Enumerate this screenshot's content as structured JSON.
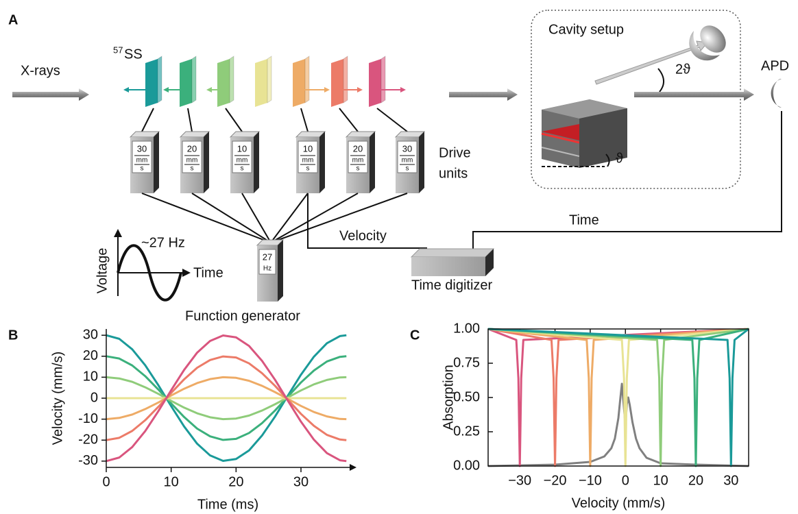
{
  "diagram": {
    "panel": "A",
    "source_label": "X-rays",
    "sample_sup": "57",
    "sample": "SS",
    "cavity_title": "Cavity setup",
    "angle_2": "2ϑ",
    "angle": "ϑ",
    "detector": "APD",
    "drive_units_label": [
      "Drive",
      "units"
    ],
    "drive_units": [
      {
        "speed": "30",
        "unit_top": "mm",
        "unit_bottom": "s"
      },
      {
        "speed": "20",
        "unit_top": "mm",
        "unit_bottom": "s"
      },
      {
        "speed": "10",
        "unit_top": "mm",
        "unit_bottom": "s"
      },
      {
        "speed": "10",
        "unit_top": "mm",
        "unit_bottom": "s"
      },
      {
        "speed": "20",
        "unit_top": "mm",
        "unit_bottom": "s"
      },
      {
        "speed": "30",
        "unit_top": "mm",
        "unit_bottom": "s"
      }
    ],
    "generator": {
      "value": "27",
      "unit": "Hz",
      "label": "Function generator"
    },
    "signal": {
      "frequency": "~27 Hz",
      "y_label": "Voltage",
      "x_label": "Time"
    },
    "velocity_wire": "Velocity",
    "time_wire": "Time",
    "digitizer": "Time digitizer"
  },
  "chart_data": [
    {
      "type": "line",
      "panel": "B",
      "x_label": "Time (ms)",
      "y_label": "Velocity (mm/s)",
      "x": [
        0,
        2,
        4,
        6,
        8,
        10,
        12,
        14,
        16,
        18,
        20,
        22,
        24,
        26,
        28,
        30,
        32,
        34,
        36,
        37
      ],
      "xlim": [
        0,
        37.5
      ],
      "xticks": [
        0,
        10,
        20,
        30
      ],
      "ylim": [
        -33,
        33
      ],
      "yticks": [
        -30,
        -20,
        -10,
        0,
        10,
        20,
        30
      ],
      "series": [
        {
          "color": "#1a9a99",
          "values": [
            30,
            28.3,
            23.3,
            15.7,
            6.3,
            -3.8,
            -13.5,
            -21.7,
            -27.3,
            -29.9,
            -29.0,
            -24.9,
            -17.8,
            -8.8,
            1.3,
            11.2,
            19.8,
            26.2,
            29.6,
            30
          ]
        },
        {
          "color": "#3bb07c",
          "values": [
            20,
            18.9,
            15.6,
            10.5,
            4.2,
            -2.5,
            -9.0,
            -14.5,
            -18.2,
            -19.9,
            -19.4,
            -16.6,
            -11.9,
            -5.9,
            0.8,
            7.5,
            13.2,
            17.5,
            19.7,
            20
          ]
        },
        {
          "color": "#8fcc7a",
          "values": [
            10,
            9.4,
            7.8,
            5.2,
            2.1,
            -1.3,
            -4.5,
            -7.2,
            -9.1,
            -10.0,
            -9.7,
            -8.3,
            -5.9,
            -2.9,
            0.4,
            3.7,
            6.6,
            8.7,
            9.9,
            10
          ]
        },
        {
          "color": "#e8e394",
          "values": [
            0,
            0,
            0,
            0,
            0,
            0,
            0,
            0,
            0,
            0,
            0,
            0,
            0,
            0,
            0,
            0,
            0,
            0,
            0,
            0
          ]
        },
        {
          "color": "#eeab66",
          "values": [
            -10,
            -9.4,
            -7.8,
            -5.2,
            -2.1,
            1.3,
            4.5,
            7.2,
            9.1,
            10.0,
            9.7,
            8.3,
            5.9,
            2.9,
            -0.4,
            -3.7,
            -6.6,
            -8.7,
            -9.9,
            -10
          ]
        },
        {
          "color": "#ec7b68",
          "values": [
            -20,
            -18.9,
            -15.6,
            -10.5,
            -4.2,
            2.5,
            9.0,
            14.5,
            18.2,
            19.9,
            19.4,
            16.6,
            11.9,
            5.9,
            -0.8,
            -7.5,
            -13.2,
            -17.5,
            -19.7,
            -20
          ]
        },
        {
          "color": "#d9557e",
          "values": [
            -30,
            -28.3,
            -23.3,
            -15.7,
            -6.3,
            3.8,
            13.5,
            21.7,
            27.3,
            29.9,
            29.0,
            24.9,
            17.8,
            8.8,
            -1.3,
            -11.2,
            -19.8,
            -26.2,
            -29.6,
            -30
          ]
        }
      ]
    },
    {
      "type": "line",
      "panel": "C",
      "x_label": "Velocity (mm/s)",
      "y_label": "Absorption",
      "xlim": [
        -39,
        35
      ],
      "xticks": [
        {
          "value": -30,
          "label": "−30"
        },
        {
          "value": -20,
          "label": "−20"
        },
        {
          "value": -10,
          "label": "−10"
        },
        0,
        10,
        20,
        30
      ],
      "ylim": [
        0,
        1
      ],
      "yticks": [
        {
          "value": 0,
          "label": "0.00"
        },
        {
          "value": 0.25,
          "label": "0.25"
        },
        {
          "value": 0.5,
          "label": "0.50"
        },
        {
          "value": 0.75,
          "label": "0.75"
        },
        {
          "value": 1,
          "label": "1.00"
        }
      ],
      "series": [
        {
          "color": "#808080",
          "x": [
            -39,
            -20,
            -10,
            -6,
            -4,
            -3,
            -2,
            -1.5,
            -1,
            -0.5,
            0,
            0.4,
            0.8,
            1.2,
            2,
            3,
            4,
            6,
            10,
            20,
            35
          ],
          "values": [
            0,
            0.01,
            0.03,
            0.07,
            0.13,
            0.2,
            0.35,
            0.48,
            0.6,
            0.45,
            0.3,
            0.45,
            0.5,
            0.45,
            0.32,
            0.2,
            0.13,
            0.06,
            0.02,
            0.01,
            0
          ]
        },
        {
          "color": "#d9557e",
          "x": [
            -39,
            -31,
            -30.4,
            -30.2,
            -30,
            -29.8,
            -29.6,
            -29,
            35
          ],
          "values": [
            1,
            0.92,
            0.64,
            0.31,
            0,
            0.31,
            0.64,
            0.92,
            1
          ]
        },
        {
          "color": "#ec7b68",
          "x": [
            -39,
            -21,
            -20.4,
            -20.2,
            -20,
            -19.8,
            -19.6,
            -19,
            35
          ],
          "values": [
            1,
            0.92,
            0.64,
            0.31,
            0,
            0.31,
            0.64,
            0.92,
            1
          ]
        },
        {
          "color": "#eeab66",
          "x": [
            -39,
            -11,
            -10.4,
            -10.2,
            -10,
            -9.8,
            -9.6,
            -9,
            35
          ],
          "values": [
            1,
            0.92,
            0.64,
            0.31,
            0,
            0.31,
            0.64,
            0.92,
            1
          ]
        },
        {
          "color": "#e8e394",
          "x": [
            -39,
            -1,
            -0.4,
            -0.2,
            0,
            0.2,
            0.4,
            1,
            35
          ],
          "values": [
            1,
            0.92,
            0.64,
            0.31,
            0,
            0.31,
            0.64,
            0.92,
            1
          ]
        },
        {
          "color": "#8fcc7a",
          "x": [
            -39,
            9,
            9.6,
            9.8,
            10,
            10.2,
            10.4,
            11,
            35
          ],
          "values": [
            1,
            0.92,
            0.64,
            0.31,
            0,
            0.31,
            0.64,
            0.92,
            1
          ]
        },
        {
          "color": "#3bb07c",
          "x": [
            -39,
            19,
            19.6,
            19.8,
            20,
            20.2,
            20.4,
            21,
            35
          ],
          "values": [
            1,
            0.92,
            0.64,
            0.31,
            0,
            0.31,
            0.64,
            0.92,
            1
          ]
        },
        {
          "color": "#1a9a99",
          "x": [
            -39,
            29,
            29.6,
            29.8,
            30,
            30.2,
            30.4,
            31,
            35
          ],
          "values": [
            1,
            0.92,
            0.64,
            0.31,
            0,
            0.31,
            0.64,
            0.92,
            1
          ]
        }
      ]
    }
  ]
}
